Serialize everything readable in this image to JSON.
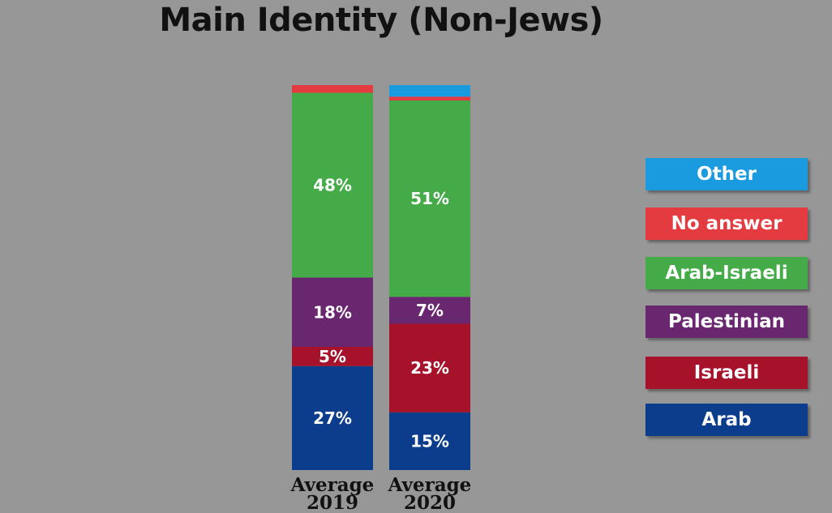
{
  "title": "Main Identity (Non-Jews)",
  "chart_data": {
    "type": "bar",
    "stacked": true,
    "categories": [
      "Average 2019",
      "Average 2020"
    ],
    "category_lines": [
      [
        "Average",
        "2019"
      ],
      [
        "Average",
        "2020"
      ]
    ],
    "ylim": [
      0,
      100
    ],
    "series": [
      {
        "name": "Arab",
        "color": "#0b3d8c",
        "values": [
          27,
          15
        ],
        "labels": [
          "27%",
          "15%"
        ]
      },
      {
        "name": "Israeli",
        "color": "#a51229",
        "values": [
          5,
          23
        ],
        "labels": [
          "5%",
          "23%"
        ]
      },
      {
        "name": "Palestinian",
        "color": "#692770",
        "values": [
          18,
          7
        ],
        "labels": [
          "18%",
          "7%"
        ]
      },
      {
        "name": "Arab-Israeli",
        "color": "#44ab48",
        "values": [
          48,
          51
        ],
        "labels": [
          "48%",
          "51%"
        ]
      },
      {
        "name": "No answer",
        "color": "#e33b3f",
        "values": [
          2,
          1
        ],
        "labels": [
          "",
          ""
        ]
      },
      {
        "name": "Other",
        "color": "#1a9be0",
        "values": [
          0,
          3
        ],
        "labels": [
          "",
          ""
        ]
      }
    ],
    "legend": {
      "position": "right",
      "items": [
        "Other",
        "No answer",
        "Arab-Israeli",
        "Palestinian",
        "Israeli",
        "Arab"
      ]
    }
  }
}
